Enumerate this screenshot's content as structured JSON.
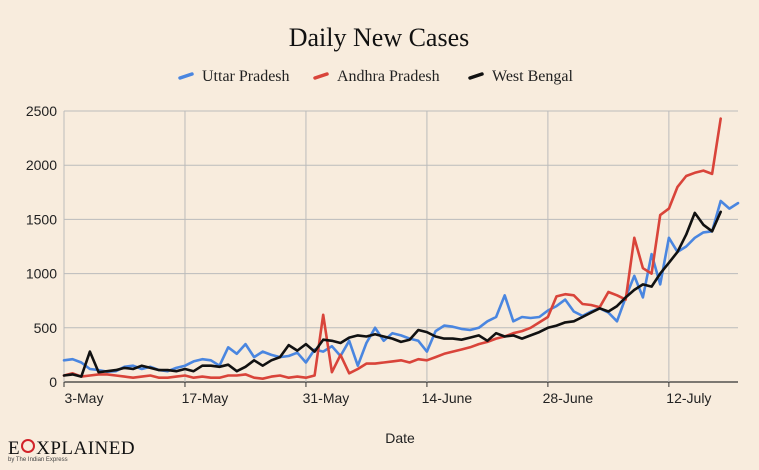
{
  "chart_data": {
    "type": "line",
    "title": "Daily New Cases",
    "xlabel": "Date",
    "ylabel": "",
    "ylim": [
      0,
      2500
    ],
    "yticks": [
      "0",
      "500",
      "1000",
      "1500",
      "2000",
      "2500"
    ],
    "xticks": [
      {
        "label": "3-May",
        "index": 0
      },
      {
        "label": "17-May",
        "index": 14
      },
      {
        "label": "31-May",
        "index": 28
      },
      {
        "label": "14-June",
        "index": 42
      },
      {
        "label": "28-June",
        "index": 56
      },
      {
        "label": "12-July",
        "index": 70
      }
    ],
    "grid": true,
    "legend_position": "top",
    "series": [
      {
        "name": "Uttar Pradesh",
        "color": "#4a86e0",
        "values": [
          200,
          210,
          180,
          120,
          110,
          95,
          100,
          140,
          150,
          120,
          140,
          110,
          100,
          130,
          150,
          190,
          210,
          200,
          150,
          320,
          260,
          350,
          230,
          280,
          250,
          230,
          240,
          270,
          180,
          300,
          280,
          330,
          240,
          380,
          150,
          360,
          500,
          380,
          450,
          430,
          400,
          380,
          280,
          470,
          520,
          510,
          490,
          480,
          500,
          560,
          600,
          800,
          560,
          600,
          590,
          600,
          660,
          700,
          760,
          650,
          610,
          650,
          680,
          640,
          560,
          780,
          980,
          780,
          1180,
          900,
          1330,
          1200,
          1250,
          1330,
          1380,
          1390,
          1670,
          1600,
          1650
        ]
      },
      {
        "name": "Andhra Pradesh",
        "color": "#d9443a",
        "values": [
          60,
          80,
          50,
          60,
          70,
          70,
          60,
          50,
          40,
          50,
          60,
          40,
          40,
          50,
          60,
          40,
          50,
          40,
          40,
          60,
          60,
          70,
          40,
          30,
          50,
          60,
          40,
          50,
          40,
          60,
          620,
          90,
          250,
          80,
          120,
          170,
          170,
          180,
          190,
          200,
          180,
          210,
          200,
          230,
          260,
          280,
          300,
          320,
          350,
          370,
          400,
          420,
          450,
          470,
          500,
          550,
          600,
          790,
          810,
          800,
          720,
          710,
          690,
          830,
          800,
          760,
          1330,
          1050,
          1000,
          1540,
          1600,
          1800,
          1900,
          1930,
          1950,
          1920,
          2430
        ]
      },
      {
        "name": "West Bengal",
        "color": "#111111",
        "values": [
          60,
          70,
          50,
          280,
          90,
          100,
          110,
          130,
          120,
          150,
          130,
          110,
          110,
          100,
          120,
          100,
          150,
          150,
          140,
          160,
          100,
          140,
          200,
          150,
          200,
          230,
          340,
          290,
          350,
          280,
          390,
          380,
          360,
          410,
          430,
          420,
          440,
          420,
          400,
          370,
          390,
          480,
          460,
          420,
          400,
          400,
          390,
          410,
          430,
          380,
          450,
          420,
          430,
          400,
          430,
          460,
          500,
          520,
          550,
          560,
          600,
          640,
          680,
          650,
          700,
          780,
          850,
          900,
          880,
          1000,
          1100,
          1200,
          1360,
          1560,
          1450,
          1390,
          1570
        ]
      }
    ]
  },
  "brand": {
    "name_before": "E",
    "name_after": "XPLAINED",
    "tagline": "by The Indian Express"
  }
}
